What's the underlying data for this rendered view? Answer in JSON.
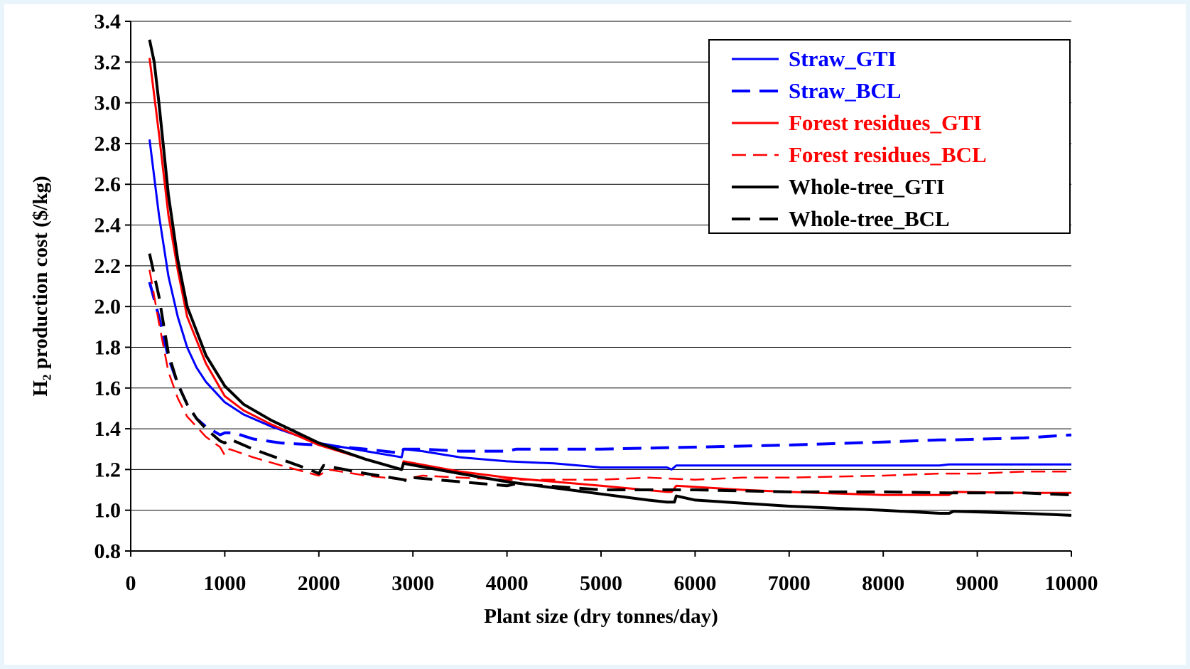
{
  "chart_data": {
    "type": "line",
    "title": "",
    "xlabel": "Plant size (dry tonnes/day)",
    "ylabel": "H₂ production cost ($/kg)",
    "xlim": [
      0,
      10000
    ],
    "ylim": [
      0.8,
      3.4
    ],
    "xticks": [
      0,
      1000,
      2000,
      3000,
      4000,
      5000,
      6000,
      7000,
      8000,
      9000,
      10000
    ],
    "xtick_labels": [
      "0",
      "1000",
      "2000",
      "3000",
      "4000",
      "5000",
      "6000",
      "7000",
      "8000",
      "9000",
      "10000"
    ],
    "yticks": [
      0.8,
      1.0,
      1.2,
      1.4,
      1.6,
      1.8,
      2.0,
      2.2,
      2.4,
      2.6,
      2.8,
      3.0,
      3.2,
      3.4
    ],
    "ytick_labels": [
      "0.8",
      "1.0",
      "1.2",
      "1.4",
      "1.6",
      "1.8",
      "2.0",
      "2.2",
      "2.4",
      "2.6",
      "2.8",
      "3.0",
      "3.2",
      "3.4"
    ],
    "grid": "horizontal",
    "legend_position": "top-right",
    "series": [
      {
        "name": "Straw_GTI",
        "color": "#0000ff",
        "dash": "solid",
        "width": 3,
        "points": [
          [
            200,
            2.82
          ],
          [
            300,
            2.45
          ],
          [
            400,
            2.15
          ],
          [
            500,
            1.95
          ],
          [
            600,
            1.8
          ],
          [
            700,
            1.7
          ],
          [
            800,
            1.63
          ],
          [
            1000,
            1.53
          ],
          [
            1200,
            1.47
          ],
          [
            1500,
            1.41
          ],
          [
            2000,
            1.33
          ],
          [
            2500,
            1.29
          ],
          [
            2880,
            1.26
          ],
          [
            2900,
            1.3
          ],
          [
            3100,
            1.29
          ],
          [
            3500,
            1.26
          ],
          [
            4000,
            1.24
          ],
          [
            4500,
            1.23
          ],
          [
            5000,
            1.21
          ],
          [
            5700,
            1.21
          ],
          [
            5750,
            1.2
          ],
          [
            5800,
            1.22
          ],
          [
            7000,
            1.22
          ],
          [
            8600,
            1.22
          ],
          [
            8700,
            1.225
          ],
          [
            10000,
            1.225
          ]
        ]
      },
      {
        "name": "Straw_BCL",
        "color": "#0000ff",
        "dash": "long",
        "width": 4,
        "points": [
          [
            200,
            2.12
          ],
          [
            300,
            1.95
          ],
          [
            400,
            1.75
          ],
          [
            500,
            1.62
          ],
          [
            600,
            1.52
          ],
          [
            700,
            1.45
          ],
          [
            800,
            1.41
          ],
          [
            950,
            1.37
          ],
          [
            1000,
            1.38
          ],
          [
            1100,
            1.38
          ],
          [
            1300,
            1.35
          ],
          [
            1600,
            1.33
          ],
          [
            2000,
            1.32
          ],
          [
            2500,
            1.3
          ],
          [
            2880,
            1.28
          ],
          [
            2900,
            1.3
          ],
          [
            3100,
            1.3
          ],
          [
            3500,
            1.29
          ],
          [
            4000,
            1.29
          ],
          [
            4100,
            1.3
          ],
          [
            5000,
            1.3
          ],
          [
            6000,
            1.31
          ],
          [
            7000,
            1.32
          ],
          [
            8000,
            1.335
          ],
          [
            8600,
            1.345
          ],
          [
            8700,
            1.345
          ],
          [
            9500,
            1.355
          ],
          [
            10000,
            1.37
          ]
        ]
      },
      {
        "name": "Forest residues_GTI",
        "color": "#ff0000",
        "dash": "solid",
        "width": 3,
        "points": [
          [
            200,
            3.22
          ],
          [
            300,
            2.85
          ],
          [
            400,
            2.45
          ],
          [
            500,
            2.18
          ],
          [
            600,
            1.95
          ],
          [
            800,
            1.72
          ],
          [
            1000,
            1.56
          ],
          [
            1200,
            1.49
          ],
          [
            1500,
            1.42
          ],
          [
            2000,
            1.32
          ],
          [
            2500,
            1.25
          ],
          [
            2880,
            1.2
          ],
          [
            2900,
            1.24
          ],
          [
            3500,
            1.19
          ],
          [
            4000,
            1.16
          ],
          [
            5000,
            1.12
          ],
          [
            5700,
            1.09
          ],
          [
            5750,
            1.09
          ],
          [
            5800,
            1.12
          ],
          [
            6500,
            1.1
          ],
          [
            7000,
            1.09
          ],
          [
            8000,
            1.075
          ],
          [
            8700,
            1.075
          ],
          [
            8750,
            1.09
          ],
          [
            9500,
            1.085
          ],
          [
            10000,
            1.085
          ]
        ]
      },
      {
        "name": "Forest residues_BCL",
        "color": "#ff0000",
        "dash": "medium",
        "width": 2.5,
        "points": [
          [
            200,
            2.18
          ],
          [
            300,
            1.92
          ],
          [
            400,
            1.68
          ],
          [
            500,
            1.55
          ],
          [
            600,
            1.46
          ],
          [
            700,
            1.41
          ],
          [
            800,
            1.36
          ],
          [
            950,
            1.31
          ],
          [
            1000,
            1.27
          ],
          [
            1050,
            1.3
          ],
          [
            1300,
            1.26
          ],
          [
            1600,
            1.22
          ],
          [
            2000,
            1.17
          ],
          [
            2100,
            1.2
          ],
          [
            2500,
            1.17
          ],
          [
            2900,
            1.15
          ],
          [
            3000,
            1.16
          ],
          [
            3100,
            1.17
          ],
          [
            3500,
            1.16
          ],
          [
            4000,
            1.15
          ],
          [
            5000,
            1.15
          ],
          [
            5500,
            1.16
          ],
          [
            6000,
            1.15
          ],
          [
            6500,
            1.16
          ],
          [
            7000,
            1.16
          ],
          [
            8000,
            1.17
          ],
          [
            8600,
            1.18
          ],
          [
            9000,
            1.18
          ],
          [
            9500,
            1.19
          ],
          [
            10000,
            1.19
          ]
        ]
      },
      {
        "name": "Whole-tree_GTI",
        "color": "#000000",
        "dash": "solid",
        "width": 4,
        "points": [
          [
            200,
            3.31
          ],
          [
            250,
            3.2
          ],
          [
            300,
            3.0
          ],
          [
            400,
            2.55
          ],
          [
            500,
            2.23
          ],
          [
            600,
            2.0
          ],
          [
            800,
            1.76
          ],
          [
            1000,
            1.61
          ],
          [
            1200,
            1.52
          ],
          [
            1500,
            1.44
          ],
          [
            2000,
            1.33
          ],
          [
            2500,
            1.25
          ],
          [
            2880,
            1.2
          ],
          [
            2900,
            1.23
          ],
          [
            3500,
            1.18
          ],
          [
            4000,
            1.14
          ],
          [
            5000,
            1.08
          ],
          [
            5500,
            1.05
          ],
          [
            5700,
            1.04
          ],
          [
            5780,
            1.04
          ],
          [
            5800,
            1.07
          ],
          [
            6000,
            1.05
          ],
          [
            7000,
            1.02
          ],
          [
            8000,
            1.0
          ],
          [
            8600,
            0.985
          ],
          [
            8700,
            0.985
          ],
          [
            8750,
            0.995
          ],
          [
            9500,
            0.985
          ],
          [
            10000,
            0.975
          ]
        ]
      },
      {
        "name": "Whole-tree_BCL",
        "color": "#000000",
        "dash": "long",
        "width": 4,
        "points": [
          [
            200,
            2.26
          ],
          [
            300,
            2.05
          ],
          [
            400,
            1.77
          ],
          [
            500,
            1.62
          ],
          [
            600,
            1.52
          ],
          [
            700,
            1.45
          ],
          [
            800,
            1.4
          ],
          [
            950,
            1.34
          ],
          [
            1000,
            1.33
          ],
          [
            1050,
            1.35
          ],
          [
            1300,
            1.3
          ],
          [
            1600,
            1.25
          ],
          [
            1900,
            1.2
          ],
          [
            2000,
            1.18
          ],
          [
            2050,
            1.22
          ],
          [
            2500,
            1.18
          ],
          [
            2900,
            1.15
          ],
          [
            2950,
            1.14
          ],
          [
            3000,
            1.16
          ],
          [
            3500,
            1.14
          ],
          [
            4000,
            1.12
          ],
          [
            4100,
            1.13
          ],
          [
            5000,
            1.1
          ],
          [
            6000,
            1.1
          ],
          [
            7000,
            1.09
          ],
          [
            8000,
            1.09
          ],
          [
            8700,
            1.085
          ],
          [
            9500,
            1.085
          ],
          [
            10000,
            1.075
          ]
        ]
      }
    ]
  }
}
